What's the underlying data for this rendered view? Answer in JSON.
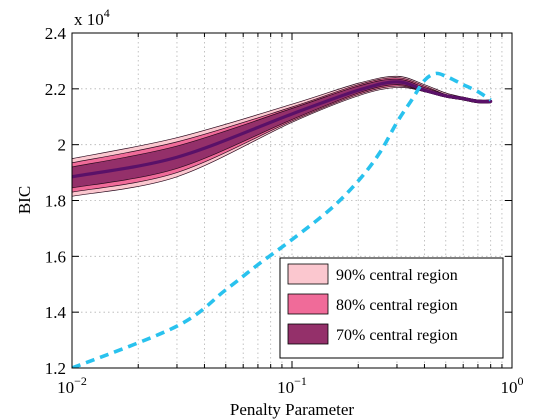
{
  "chart_data": {
    "type": "area",
    "xscale": "log",
    "xlim": [
      0.01,
      1
    ],
    "ylim": [
      12000,
      24000
    ],
    "xlabel": "Penalty Parameter",
    "ylabel": "BIC",
    "y_multiplier_label": "x 10",
    "y_multiplier_exponent": "4",
    "grid": true,
    "legend_position": "bottom-right",
    "x_ticks": [
      {
        "value": 0.01,
        "base": "10",
        "exp": "−2"
      },
      {
        "value": 0.1,
        "base": "10",
        "exp": "−1"
      },
      {
        "value": 1,
        "base": "10",
        "exp": "0"
      }
    ],
    "y_ticks": [
      {
        "value": 12000,
        "label": "1.2"
      },
      {
        "value": 14000,
        "label": "1.4"
      },
      {
        "value": 16000,
        "label": "1.6"
      },
      {
        "value": 18000,
        "label": "1.8"
      },
      {
        "value": 20000,
        "label": "2"
      },
      {
        "value": 22000,
        "label": "2.2"
      },
      {
        "value": 24000,
        "label": "2.4"
      }
    ],
    "x": [
      0.01,
      0.03,
      0.1,
      0.2,
      0.3,
      0.4,
      0.5,
      0.6,
      0.7,
      0.8
    ],
    "median": [
      18850,
      19550,
      21100,
      21950,
      22250,
      21950,
      21750,
      21650,
      21550,
      21550
    ],
    "bands": [
      {
        "name": "90% central region",
        "color": "#fbc7cf",
        "lower": [
          18150,
          18850,
          20800,
          21750,
          22050,
          21900,
          21700,
          21600,
          21500,
          21500
        ],
        "upper": [
          19500,
          20250,
          21450,
          22200,
          22450,
          22150,
          21850,
          21700,
          21600,
          21600
        ]
      },
      {
        "name": "80% central region",
        "color": "#f06b99",
        "lower": [
          18300,
          19000,
          20850,
          21800,
          22100,
          21900,
          21700,
          21600,
          21500,
          21500
        ],
        "upper": [
          19350,
          20100,
          21350,
          22150,
          22400,
          22100,
          21800,
          21700,
          21600,
          21600
        ]
      },
      {
        "name": "70% central region",
        "color": "#94306a",
        "lower": [
          18450,
          19150,
          20900,
          21850,
          22150,
          21900,
          21700,
          21600,
          21500,
          21500
        ],
        "upper": [
          19200,
          19950,
          21300,
          22100,
          22350,
          22050,
          21800,
          21700,
          21600,
          21600
        ]
      }
    ],
    "median_color": "#5a1168",
    "dashed_series": {
      "color": "#29c2ee",
      "x": [
        0.01,
        0.03,
        0.05,
        0.07,
        0.1,
        0.15,
        0.2,
        0.25,
        0.3,
        0.35,
        0.4,
        0.45,
        0.5,
        0.55,
        0.6,
        0.7,
        0.8
      ],
      "values": [
        12000,
        13500,
        14800,
        15700,
        16600,
        17700,
        18700,
        19700,
        20800,
        21600,
        22300,
        22550,
        22450,
        22300,
        22150,
        21900,
        21600
      ]
    }
  }
}
